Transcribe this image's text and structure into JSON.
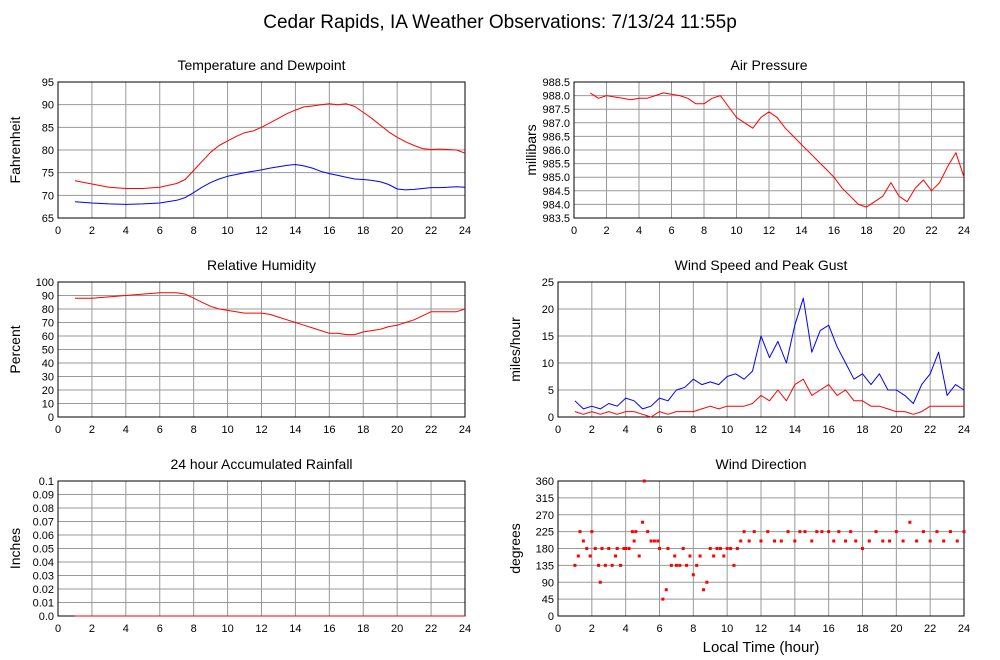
{
  "page": {
    "title": "Cedar Rapids, IA Weather Observations: 7/13/24 11:55p",
    "xlabel": "Local Time (hour)",
    "colors": {
      "primary": "#ff0000",
      "secondary": "#0000ff",
      "grid": "#999999"
    }
  },
  "chart_data": [
    {
      "id": "temp",
      "type": "line",
      "title": "Temperature and Dewpoint",
      "ylabel": "Fahrenheit",
      "xlim": [
        0,
        24
      ],
      "ylim": [
        65,
        95
      ],
      "xticks": [
        0,
        2,
        4,
        6,
        8,
        10,
        12,
        14,
        16,
        18,
        20,
        22,
        24
      ],
      "yticks": [
        65,
        70,
        75,
        80,
        85,
        90,
        95
      ],
      "grid": true,
      "series": [
        {
          "color": "#ff0000",
          "x": [
            1,
            2,
            3,
            4,
            5,
            6,
            7,
            7.5,
            8,
            8.5,
            9,
            9.5,
            10,
            10.5,
            11,
            11.5,
            12,
            12.5,
            13,
            13.5,
            14,
            14.5,
            15,
            15.5,
            16,
            16.5,
            17,
            17.5,
            18,
            18.5,
            19,
            19.5,
            20,
            20.5,
            21,
            21.5,
            22,
            22.5,
            23,
            23.5,
            24
          ],
          "y": [
            73.2,
            72.5,
            71.8,
            71.5,
            71.5,
            71.8,
            72.6,
            73.5,
            75.5,
            77.5,
            79.5,
            81,
            82,
            83,
            83.8,
            84.2,
            85,
            86,
            87,
            88,
            88.8,
            89.5,
            89.7,
            90,
            90.2,
            90,
            90.2,
            89.6,
            88.3,
            87,
            85.5,
            84,
            82.8,
            81.8,
            81,
            80.3,
            80.1,
            80.2,
            80.1,
            80,
            79.3
          ]
        },
        {
          "color": "#0000ff",
          "x": [
            1,
            2,
            3,
            4,
            5,
            6,
            7,
            7.5,
            8,
            8.5,
            9,
            9.5,
            10,
            10.5,
            11,
            11.5,
            12,
            12.5,
            13,
            13.5,
            14,
            14.5,
            15,
            15.5,
            16,
            16.5,
            17,
            17.5,
            18,
            18.5,
            19,
            19.5,
            20,
            20.5,
            21,
            21.5,
            22,
            22.5,
            23,
            23.5,
            24
          ],
          "y": [
            68.6,
            68.3,
            68.1,
            68,
            68.1,
            68.3,
            68.9,
            69.5,
            70.6,
            71.8,
            72.8,
            73.6,
            74.2,
            74.6,
            75,
            75.3,
            75.6,
            76,
            76.3,
            76.6,
            76.8,
            76.5,
            76,
            75.3,
            74.8,
            74.4,
            74,
            73.6,
            73.5,
            73.3,
            73,
            72.4,
            71.4,
            71.2,
            71.3,
            71.5,
            71.7,
            71.7,
            71.8,
            71.9,
            71.8
          ]
        }
      ]
    },
    {
      "id": "pressure",
      "type": "line",
      "title": "Air Pressure",
      "ylabel": "millibars",
      "xlim": [
        0,
        24
      ],
      "ylim": [
        983.5,
        988.5
      ],
      "xticks": [
        0,
        2,
        4,
        6,
        8,
        10,
        12,
        14,
        16,
        18,
        20,
        22,
        24
      ],
      "yticks": [
        983.5,
        984.0,
        984.5,
        985.0,
        985.5,
        986.0,
        986.5,
        987.0,
        987.5,
        988.0,
        988.5
      ],
      "grid": true,
      "series": [
        {
          "color": "#ff0000",
          "x": [
            1,
            1.5,
            2,
            2.5,
            3,
            3.5,
            4,
            4.5,
            5,
            5.5,
            6,
            6.5,
            7,
            7.5,
            8,
            8.5,
            9,
            9.5,
            10,
            10.5,
            11,
            11.5,
            12,
            12.5,
            13,
            13.5,
            14,
            14.5,
            15,
            15.5,
            16,
            16.5,
            17,
            17.5,
            18,
            18.5,
            19,
            19.5,
            20,
            20.5,
            21,
            21.5,
            22,
            22.5,
            23,
            23.5,
            24
          ],
          "y": [
            988.1,
            987.9,
            988.0,
            987.95,
            987.9,
            987.85,
            987.9,
            987.9,
            988.0,
            988.1,
            988.05,
            988.0,
            987.9,
            987.7,
            987.7,
            987.9,
            988.0,
            987.6,
            987.2,
            987.0,
            986.8,
            987.2,
            987.4,
            987.2,
            986.8,
            986.5,
            986.2,
            985.9,
            985.6,
            985.3,
            985.0,
            984.6,
            984.3,
            984.0,
            983.9,
            984.1,
            984.3,
            984.8,
            984.3,
            984.1,
            984.6,
            984.9,
            984.5,
            984.8,
            985.4,
            985.9,
            985.0
          ]
        }
      ]
    },
    {
      "id": "humidity",
      "type": "line",
      "title": "Relative Humidity",
      "ylabel": "Percent",
      "xlim": [
        0,
        24
      ],
      "ylim": [
        0,
        100
      ],
      "xticks": [
        0,
        2,
        4,
        6,
        8,
        10,
        12,
        14,
        16,
        18,
        20,
        22,
        24
      ],
      "yticks": [
        0,
        10,
        20,
        30,
        40,
        50,
        60,
        70,
        80,
        90,
        100
      ],
      "grid": true,
      "series": [
        {
          "color": "#ff0000",
          "x": [
            1,
            2,
            3,
            4,
            5,
            6,
            7,
            7.5,
            8,
            8.5,
            9,
            9.5,
            10,
            10.5,
            11,
            11.5,
            12,
            12.5,
            13,
            13.5,
            14,
            14.5,
            15,
            15.5,
            16,
            16.5,
            17,
            17.5,
            18,
            18.5,
            19,
            19.5,
            20,
            20.5,
            21,
            21.5,
            22,
            22.5,
            23,
            23.5,
            24
          ],
          "y": [
            88,
            88,
            89,
            90,
            91,
            92,
            92,
            91,
            88,
            85,
            82,
            80,
            79,
            78,
            77,
            77,
            77,
            76,
            74,
            72,
            70,
            68,
            66,
            64,
            62,
            62,
            61,
            61,
            63,
            64,
            65,
            67,
            68,
            70,
            72,
            75,
            78,
            78,
            78,
            78,
            80
          ]
        }
      ]
    },
    {
      "id": "wind",
      "type": "line",
      "title": "Wind Speed and Peak Gust",
      "ylabel": "miles/hour",
      "xlim": [
        0,
        24
      ],
      "ylim": [
        0,
        25
      ],
      "xticks": [
        0,
        2,
        4,
        6,
        8,
        10,
        12,
        14,
        16,
        18,
        20,
        22,
        24
      ],
      "yticks": [
        0,
        5,
        10,
        15,
        20,
        25
      ],
      "grid": true,
      "series": [
        {
          "color": "#0000ff",
          "x": [
            1,
            1.5,
            2,
            2.5,
            3,
            3.5,
            4,
            4.5,
            5,
            5.5,
            6,
            6.5,
            7,
            7.5,
            8,
            8.5,
            9,
            9.5,
            10,
            10.5,
            11,
            11.5,
            12,
            12.5,
            13,
            13.5,
            14,
            14.5,
            15,
            15.5,
            16,
            16.5,
            17,
            17.5,
            18,
            18.5,
            19,
            19.5,
            20,
            20.5,
            21,
            21.5,
            22,
            22.5,
            23,
            23.5,
            24
          ],
          "y": [
            3,
            1.5,
            2,
            1.5,
            2.5,
            2,
            3.5,
            3,
            1.5,
            2,
            3.5,
            3,
            5,
            5.5,
            7,
            6,
            6.5,
            6,
            7.5,
            8,
            7,
            8.5,
            15,
            11,
            14,
            10,
            17,
            22,
            12,
            16,
            17,
            13,
            10,
            7,
            8,
            6,
            8,
            5,
            5,
            4,
            2.5,
            6,
            8,
            12,
            4,
            6,
            5
          ]
        },
        {
          "color": "#ff0000",
          "x": [
            1,
            1.5,
            2,
            2.5,
            3,
            3.5,
            4,
            4.5,
            5,
            5.5,
            6,
            6.5,
            7,
            7.5,
            8,
            8.5,
            9,
            9.5,
            10,
            10.5,
            11,
            11.5,
            12,
            12.5,
            13,
            13.5,
            14,
            14.5,
            15,
            15.5,
            16,
            16.5,
            17,
            17.5,
            18,
            18.5,
            19,
            19.5,
            20,
            20.5,
            21,
            21.5,
            22,
            22.5,
            23,
            23.5,
            24
          ],
          "y": [
            1,
            0.5,
            1,
            0.5,
            1,
            0.5,
            1,
            1,
            0.5,
            0,
            1,
            0.5,
            1,
            1,
            1,
            1.5,
            2,
            1.5,
            2,
            2,
            2,
            2.5,
            4,
            3,
            5,
            3,
            6,
            7,
            4,
            5,
            6,
            4,
            5,
            3,
            3,
            2,
            2,
            1.5,
            1,
            1,
            0.5,
            1,
            2,
            2,
            2,
            2,
            2
          ]
        }
      ]
    },
    {
      "id": "rain",
      "type": "line",
      "title": "24 hour Accumulated Rainfall",
      "ylabel": "Inches",
      "xlim": [
        0,
        24
      ],
      "ylim": [
        0,
        0.1
      ],
      "xticks": [
        0,
        2,
        4,
        6,
        8,
        10,
        12,
        14,
        16,
        18,
        20,
        22,
        24
      ],
      "yticks": [
        0.0,
        0.01,
        0.02,
        0.03,
        0.04,
        0.05,
        0.06,
        0.07,
        0.08,
        0.09,
        0.1
      ],
      "ytick_labels": [
        "0.0",
        "0.01",
        "0.02",
        "0.03",
        "0.04",
        "0.05",
        "0.06",
        "0.07",
        "0.08",
        "0.09",
        "0.1"
      ],
      "grid": true,
      "series": [
        {
          "color": "#ff0000",
          "x": [
            1,
            24
          ],
          "y": [
            0,
            0
          ]
        }
      ]
    },
    {
      "id": "direction",
      "type": "scatter",
      "title": "Wind Direction",
      "ylabel": "degrees",
      "xlim": [
        0,
        24
      ],
      "ylim": [
        0,
        360
      ],
      "xticks": [
        0,
        2,
        4,
        6,
        8,
        10,
        12,
        14,
        16,
        18,
        20,
        22,
        24
      ],
      "yticks": [
        0,
        45,
        90,
        135,
        180,
        225,
        270,
        315,
        360
      ],
      "grid": true,
      "series": [
        {
          "color": "#ff0000",
          "x": [
            1.0,
            1.2,
            1.3,
            1.5,
            1.7,
            1.9,
            2.0,
            2.2,
            2.4,
            2.5,
            2.6,
            2.8,
            3.0,
            3.2,
            3.4,
            3.5,
            3.7,
            3.9,
            4.0,
            4.2,
            4.4,
            4.5,
            4.6,
            4.8,
            5.0,
            5.1,
            5.3,
            5.5,
            5.7,
            5.9,
            6.0,
            6.2,
            6.4,
            6.5,
            6.7,
            6.9,
            7.0,
            7.2,
            7.4,
            7.6,
            7.8,
            8.0,
            8.2,
            8.4,
            8.6,
            8.8,
            9.0,
            9.2,
            9.4,
            9.6,
            9.8,
            10.0,
            10.2,
            10.4,
            10.6,
            10.8,
            11.0,
            11.3,
            11.6,
            12.0,
            12.4,
            12.8,
            13.2,
            13.6,
            14.0,
            14.3,
            14.6,
            15.0,
            15.3,
            15.6,
            16.0,
            16.3,
            16.6,
            17.0,
            17.3,
            17.6,
            18.0,
            18.4,
            18.8,
            19.2,
            19.6,
            20.0,
            20.4,
            20.8,
            21.2,
            21.6,
            22.0,
            22.4,
            22.8,
            23.2,
            23.6,
            24.0
          ],
          "y": [
            135,
            160,
            225,
            200,
            180,
            160,
            225,
            180,
            135,
            90,
            180,
            135,
            180,
            135,
            160,
            180,
            135,
            180,
            180,
            180,
            225,
            200,
            225,
            160,
            250,
            360,
            225,
            200,
            200,
            200,
            180,
            45,
            70,
            180,
            135,
            160,
            135,
            135,
            180,
            135,
            160,
            110,
            135,
            160,
            70,
            90,
            180,
            160,
            180,
            180,
            160,
            180,
            180,
            135,
            180,
            200,
            225,
            200,
            225,
            200,
            225,
            200,
            200,
            225,
            200,
            225,
            225,
            200,
            225,
            225,
            225,
            200,
            225,
            200,
            225,
            200,
            180,
            200,
            225,
            200,
            200,
            225,
            200,
            250,
            200,
            225,
            200,
            225,
            200,
            225,
            200,
            225
          ]
        }
      ]
    }
  ]
}
